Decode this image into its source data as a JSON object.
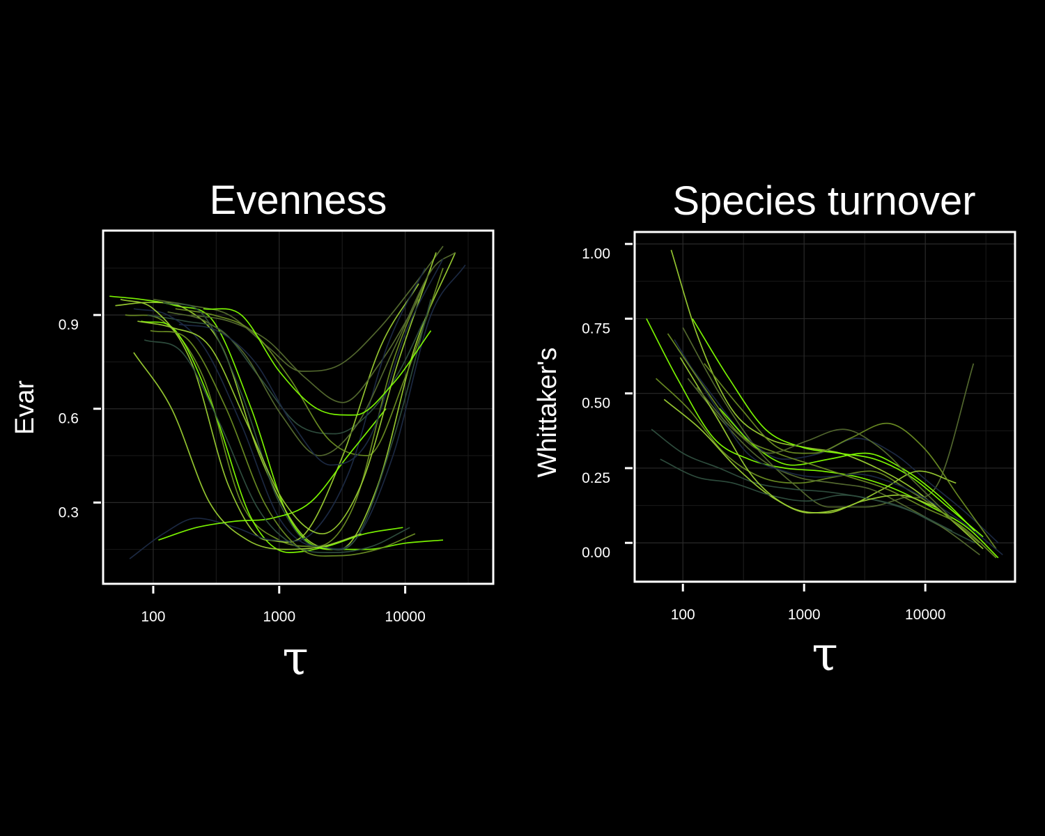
{
  "chart_data": [
    {
      "type": "line",
      "title": "Evenness",
      "xlabel": "τ",
      "ylabel": "Evar",
      "x_scale": "log",
      "x_ticks": [
        100,
        1000,
        10000
      ],
      "x_tick_labels": [
        "100",
        "1000",
        "10000"
      ],
      "y_ticks": [
        0.3,
        0.6,
        0.9
      ],
      "y_tick_labels": [
        "0.3",
        "0.6",
        "0.9"
      ],
      "xlim": [
        40,
        50000
      ],
      "ylim": [
        0.04,
        1.17
      ],
      "grid": true,
      "legend": "none",
      "series_colors": [
        "#7fff00",
        "#9acd32",
        "#6b8e23",
        "#556b2f",
        "#2f4f3f",
        "#1c2a44"
      ],
      "series": [
        {
          "x": [
            45,
            80,
            150,
            300,
            600,
            1200,
            2500,
            5000,
            10000,
            20000
          ],
          "y": [
            0.96,
            0.95,
            0.93,
            0.88,
            0.6,
            0.25,
            0.15,
            0.15,
            0.17,
            0.18
          ]
        },
        {
          "x": [
            50,
            90,
            180,
            350,
            700,
            1500,
            3000,
            6000,
            12000,
            25000
          ],
          "y": [
            0.93,
            0.94,
            0.92,
            0.8,
            0.45,
            0.2,
            0.15,
            0.35,
            0.8,
            1.1
          ]
        },
        {
          "x": [
            60,
            120,
            250,
            500,
            1000,
            2000,
            4000,
            8000,
            16000
          ],
          "y": [
            0.9,
            0.88,
            0.7,
            0.3,
            0.18,
            0.16,
            0.3,
            0.75,
            1.05
          ]
        },
        {
          "x": [
            100,
            200,
            400,
            800,
            1500,
            3000,
            6000,
            12000,
            20000
          ],
          "y": [
            0.95,
            0.93,
            0.9,
            0.8,
            0.72,
            0.74,
            0.85,
            1.0,
            1.12
          ]
        },
        {
          "x": [
            90,
            180,
            350,
            700,
            1400,
            2800,
            5000,
            9000,
            14000
          ],
          "y": [
            0.9,
            0.88,
            0.85,
            0.7,
            0.55,
            0.52,
            0.58,
            0.72,
            0.88
          ]
        },
        {
          "x": [
            70,
            130,
            250,
            500,
            1000,
            2000,
            4000,
            8000,
            16000,
            30000
          ],
          "y": [
            0.92,
            0.9,
            0.8,
            0.55,
            0.25,
            0.16,
            0.18,
            0.45,
            0.9,
            1.06
          ]
        },
        {
          "x": [
            80,
            150,
            300,
            600,
            1200,
            2400,
            4800,
            9600
          ],
          "y": [
            0.88,
            0.85,
            0.6,
            0.25,
            0.14,
            0.16,
            0.2,
            0.22
          ]
        },
        {
          "x": [
            55,
            100,
            200,
            400,
            800,
            1600,
            3200,
            6400,
            12800
          ],
          "y": [
            0.95,
            0.92,
            0.75,
            0.35,
            0.18,
            0.2,
            0.45,
            0.8,
            1.0
          ]
        },
        {
          "x": [
            150,
            300,
            600,
            1200,
            2500,
            5000,
            10000,
            20000
          ],
          "y": [
            0.92,
            0.9,
            0.85,
            0.7,
            0.5,
            0.45,
            0.7,
            1.05
          ]
        },
        {
          "x": [
            200,
            400,
            800,
            1600,
            3200,
            6400,
            12800
          ],
          "y": [
            0.9,
            0.88,
            0.82,
            0.7,
            0.62,
            0.75,
            0.95
          ]
        },
        {
          "x": [
            120,
            250,
            500,
            1000,
            2000,
            4000,
            8000,
            16000
          ],
          "y": [
            0.94,
            0.9,
            0.65,
            0.3,
            0.16,
            0.18,
            0.5,
            0.95
          ]
        },
        {
          "x": [
            65,
            120,
            220,
            450,
            900,
            1800,
            3600,
            7200,
            14400
          ],
          "y": [
            0.12,
            0.2,
            0.25,
            0.22,
            0.18,
            0.2,
            0.4,
            0.8,
            1.05
          ]
        },
        {
          "x": [
            110,
            220,
            440,
            880,
            1760,
            3520,
            7040
          ],
          "y": [
            0.18,
            0.22,
            0.24,
            0.25,
            0.3,
            0.45,
            0.6
          ]
        },
        {
          "x": [
            75,
            140,
            280,
            560,
            1100,
            2200,
            4400,
            8800,
            17600
          ],
          "y": [
            0.88,
            0.86,
            0.8,
            0.55,
            0.3,
            0.2,
            0.35,
            0.75,
            1.1
          ]
        },
        {
          "x": [
            95,
            190,
            380,
            760,
            1500,
            3000,
            6000,
            12000
          ],
          "y": [
            0.85,
            0.82,
            0.6,
            0.3,
            0.15,
            0.13,
            0.15,
            0.2
          ]
        },
        {
          "x": [
            130,
            260,
            520,
            1040,
            2080,
            4160,
            8320,
            16640,
            25000
          ],
          "y": [
            0.91,
            0.88,
            0.78,
            0.58,
            0.45,
            0.55,
            0.8,
            1.05,
            1.1
          ]
        },
        {
          "x": [
            85,
            170,
            340,
            680,
            1360,
            2720,
            5440,
            10880
          ],
          "y": [
            0.82,
            0.78,
            0.55,
            0.28,
            0.16,
            0.14,
            0.16,
            0.22
          ]
        },
        {
          "x": [
            160,
            320,
            640,
            1280,
            2560,
            5120,
            10240,
            20000
          ],
          "y": [
            0.87,
            0.85,
            0.75,
            0.55,
            0.42,
            0.5,
            0.85,
            1.08
          ]
        },
        {
          "x": [
            250,
            500,
            1000,
            2000,
            4000,
            8000,
            16000
          ],
          "y": [
            0.92,
            0.9,
            0.72,
            0.6,
            0.58,
            0.68,
            0.85
          ]
        },
        {
          "x": [
            70,
            140,
            280,
            560,
            1120,
            2240,
            4480
          ],
          "y": [
            0.78,
            0.6,
            0.3,
            0.18,
            0.15,
            0.16,
            0.2
          ]
        }
      ]
    },
    {
      "type": "line",
      "title": "Species turnover",
      "xlabel": "τ",
      "ylabel": "Whittaker's",
      "x_scale": "log",
      "x_ticks": [
        100,
        1000,
        10000
      ],
      "x_tick_labels": [
        "100",
        "1000",
        "10000"
      ],
      "y_ticks": [
        0.0,
        0.25,
        0.5,
        0.75,
        1.0
      ],
      "y_tick_labels": [
        "0.00",
        "0.25",
        "0.50",
        "0.75",
        "1.00"
      ],
      "xlim": [
        40,
        55000
      ],
      "ylim": [
        -0.13,
        1.04
      ],
      "grid": true,
      "legend": "none",
      "series_colors": [
        "#7fff00",
        "#9acd32",
        "#6b8e23",
        "#556b2f",
        "#2f4f3f",
        "#1c2a44"
      ],
      "series": [
        {
          "x": [
            50,
            90,
            180,
            350,
            700,
            1400,
            2800,
            5600,
            11200,
            22400,
            40000
          ],
          "y": [
            0.75,
            0.55,
            0.35,
            0.28,
            0.25,
            0.24,
            0.22,
            0.18,
            0.12,
            0.05,
            -0.05
          ]
        },
        {
          "x": [
            80,
            130,
            250,
            500,
            1000,
            2000,
            4000,
            8000,
            16000,
            30000
          ],
          "y": [
            0.98,
            0.7,
            0.45,
            0.35,
            0.32,
            0.3,
            0.25,
            0.18,
            0.08,
            -0.02
          ]
        },
        {
          "x": [
            60,
            110,
            220,
            440,
            880,
            1760,
            3520,
            7040,
            14000,
            28000
          ],
          "y": [
            0.55,
            0.45,
            0.3,
            0.22,
            0.2,
            0.22,
            0.24,
            0.18,
            0.1,
            0.0
          ]
        },
        {
          "x": [
            100,
            200,
            400,
            800,
            1600,
            3200,
            6400,
            12800,
            25000
          ],
          "y": [
            0.72,
            0.5,
            0.32,
            0.2,
            0.12,
            0.12,
            0.15,
            0.2,
            0.6
          ]
        },
        {
          "x": [
            55,
            100,
            200,
            400,
            800,
            1600,
            3200,
            6400,
            12800,
            25600
          ],
          "y": [
            0.38,
            0.3,
            0.25,
            0.2,
            0.18,
            0.17,
            0.15,
            0.12,
            0.06,
            0.0
          ]
        },
        {
          "x": [
            90,
            170,
            340,
            680,
            1360,
            2720,
            5440,
            10880,
            21760,
            40000
          ],
          "y": [
            0.65,
            0.5,
            0.35,
            0.28,
            0.3,
            0.35,
            0.3,
            0.2,
            0.1,
            0.0
          ]
        },
        {
          "x": [
            120,
            240,
            480,
            960,
            1920,
            3840,
            7680,
            15360,
            30000
          ],
          "y": [
            0.75,
            0.55,
            0.38,
            0.32,
            0.3,
            0.28,
            0.22,
            0.12,
            0.02
          ]
        },
        {
          "x": [
            70,
            140,
            280,
            560,
            1120,
            2240,
            4480,
            8960,
            17920
          ],
          "y": [
            0.48,
            0.38,
            0.25,
            0.15,
            0.1,
            0.12,
            0.18,
            0.24,
            0.2
          ]
        },
        {
          "x": [
            150,
            300,
            600,
            1200,
            2400,
            4800,
            9600,
            19200,
            38400
          ],
          "y": [
            0.6,
            0.45,
            0.32,
            0.3,
            0.35,
            0.4,
            0.32,
            0.15,
            -0.02
          ]
        },
        {
          "x": [
            110,
            220,
            440,
            880,
            1760,
            3520,
            7040,
            14080,
            28160
          ],
          "y": [
            0.55,
            0.4,
            0.28,
            0.22,
            0.2,
            0.18,
            0.12,
            0.05,
            -0.04
          ]
        },
        {
          "x": [
            65,
            130,
            260,
            520,
            1040,
            2080,
            4160,
            8320,
            16640
          ],
          "y": [
            0.28,
            0.22,
            0.2,
            0.16,
            0.14,
            0.16,
            0.14,
            0.1,
            0.04
          ]
        },
        {
          "x": [
            85,
            170,
            340,
            680,
            1360,
            2720,
            5440,
            10880,
            21760,
            43520
          ],
          "y": [
            0.68,
            0.48,
            0.3,
            0.24,
            0.22,
            0.23,
            0.2,
            0.14,
            0.06,
            -0.04
          ]
        },
        {
          "x": [
            200,
            400,
            800,
            1600,
            3200,
            6400,
            12800,
            25600
          ],
          "y": [
            0.45,
            0.32,
            0.26,
            0.28,
            0.3,
            0.25,
            0.16,
            0.04
          ]
        },
        {
          "x": [
            95,
            190,
            380,
            760,
            1520,
            3040,
            6080,
            12160
          ],
          "y": [
            0.62,
            0.42,
            0.22,
            0.12,
            0.1,
            0.14,
            0.16,
            0.12
          ]
        },
        {
          "x": [
            75,
            150,
            300,
            600,
            1200,
            2400,
            4800,
            9600,
            19200,
            38400
          ],
          "y": [
            0.7,
            0.52,
            0.36,
            0.3,
            0.26,
            0.22,
            0.18,
            0.12,
            0.06,
            -0.05
          ]
        },
        {
          "x": [
            130,
            260,
            520,
            1040,
            2080,
            4160,
            8320,
            16640
          ],
          "y": [
            0.52,
            0.38,
            0.3,
            0.34,
            0.38,
            0.32,
            0.2,
            0.08
          ]
        }
      ]
    }
  ]
}
